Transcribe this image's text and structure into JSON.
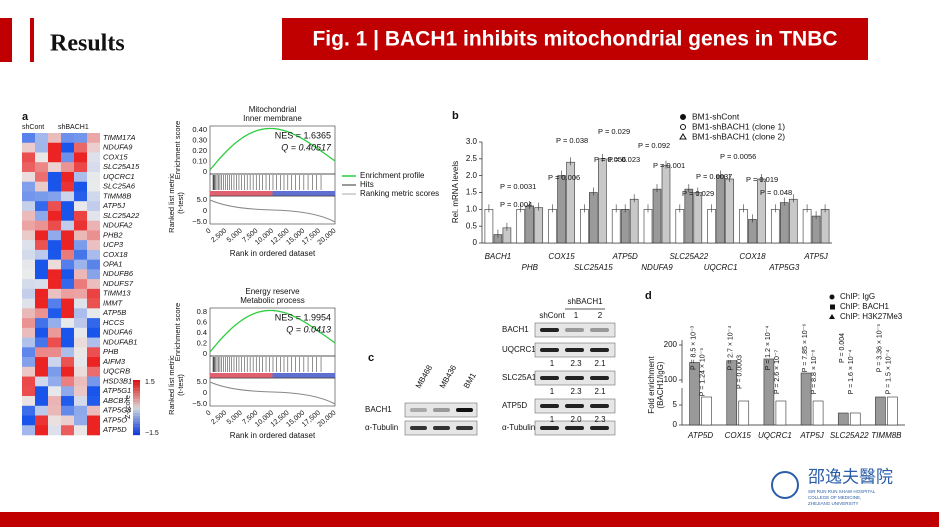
{
  "header": {
    "title": "Results",
    "banner": "Fig. 1 | BACH1 inhibits mitochondrial genes in TNBC"
  },
  "panel_a": {
    "label": "a",
    "groups": [
      "shCont",
      "shBACH1"
    ],
    "genes": [
      "TIMM17A",
      "NDUFA9",
      "COX15",
      "SLC25A15",
      "UQCRC1",
      "SLC25A6",
      "TIMM8B",
      "ATP5J",
      "SLC25A22",
      "NDUFA2",
      "PHB2",
      "UCP3",
      "COX18",
      "OPA1",
      "NDUFB6",
      "NDUFS7",
      "TIMM13",
      "IMMT",
      "ATP5B",
      "HCCS",
      "NDUFA6",
      "NDUFAB1",
      "PHB",
      "AIFM3",
      "UQCRB",
      "HSD3B1",
      "ATP5G1",
      "ABCB7",
      "ATP5G3",
      "ATP5O",
      "ATP5D"
    ],
    "scale": {
      "max": "1.5",
      "min": "−1.5",
      "label": "Z-score"
    },
    "legend": [
      "Enrichment profile",
      "Hits",
      "Ranking metric scores"
    ],
    "gsea": [
      {
        "title": [
          "Mitochondrial",
          "Inner membrane"
        ],
        "es_label": "Enrichment score",
        "es_ticks": [
          "0.40",
          "0.30",
          "0.20",
          "0.10",
          "0"
        ],
        "nes": "NES = 1.6365",
        "q": "Q = 0.40517",
        "metric_label": [
          "Ranked list metric",
          "(t-test)"
        ],
        "metric_ticks": [
          "5.0",
          "0",
          "−5.0"
        ],
        "x_ticks": [
          "0",
          "2,500",
          "5,000",
          "7,500",
          "10,000",
          "12,500",
          "15,000",
          "17,500",
          "20,000"
        ],
        "x_label": "Rank in ordered dataset"
      },
      {
        "title": [
          "Energy reserve",
          "Metabolic process"
        ],
        "es_label": "Enrichment score",
        "es_ticks": [
          "0.8",
          "0.6",
          "0.4",
          "0.2",
          "0"
        ],
        "nes": "NES = 1.9954",
        "q": "Q = 0.0413",
        "metric_label": [
          "Ranked list metric",
          "(t-test)"
        ],
        "metric_ticks": [
          "5.0",
          "0",
          "−5.0"
        ],
        "x_ticks": [
          "0",
          "2,500",
          "5,000",
          "7,500",
          "10,000",
          "12,500",
          "15,000",
          "17,500",
          "20,000"
        ],
        "x_label": "Rank in ordered dataset"
      }
    ]
  },
  "panel_b": {
    "label": "b",
    "type": "bar",
    "y_label": "Rel. mRNA levels",
    "categories": [
      "BACH1",
      "PHB",
      "COX15",
      "SLC25A15",
      "ATP5D",
      "NDUFA9",
      "SLC25A22",
      "UQCRC1",
      "COX18",
      "ATP5G3",
      "ATP5J"
    ],
    "series": [
      {
        "name": "BM1-shCont",
        "color": "#ffffff",
        "values": [
          1,
          1,
          1,
          1,
          1,
          1,
          1,
          1,
          1,
          1,
          1
        ]
      },
      {
        "name": "BM1-shBACH1 (clone 1)",
        "color": "#9a9a9a",
        "values": [
          0.25,
          1.1,
          2.0,
          1.5,
          1.0,
          1.6,
          1.6,
          2.0,
          0.7,
          1.2,
          0.8
        ]
      },
      {
        "name": "BM1-shBACH1 (clone 2)",
        "color": "#c8c8c8",
        "values": [
          0.45,
          1.05,
          2.4,
          2.5,
          1.3,
          2.3,
          1.5,
          1.9,
          1.9,
          1.3,
          1.0
        ]
      }
    ],
    "ylim": [
      0,
      3
    ],
    "yticks": [
      0,
      {
        "value": 0.5,
        "label": "0.5"
      },
      {
        "value": 1,
        "label": "1.0"
      },
      {
        "value": 1.5,
        "label": "1.5"
      },
      {
        "value": 2,
        "label": "2.0"
      },
      {
        "value": 2.5,
        "label": "2.5"
      },
      {
        "value": 3,
        "label": "3.0"
      }
    ],
    "annotations": [
      "P = 0.0031",
      "P = 0.004",
      "P = 0.006",
      "P = 0.038",
      "P = 0.056",
      "P = 0.029",
      "P = 0.023",
      "P = 0.092",
      "P = 0.001",
      "P = 0.0037",
      "P = 0.029",
      "P = 0.0056",
      "P = 0.019",
      "P = 0.048"
    ]
  },
  "panel_c": {
    "label": "c",
    "lines": [
      "MB468",
      "MB436",
      "BM1"
    ],
    "left_rows": [
      "BACH1",
      "α-Tubulin"
    ],
    "group": "shBACH1",
    "lanes": [
      "shCont",
      "1",
      "2"
    ],
    "right_rows": [
      "BACH1",
      "UQCRC1",
      "SLC25A15",
      "ATP5D",
      "α-Tubulin"
    ],
    "quant": [
      [
        "1",
        "2.3",
        "2.1"
      ],
      [
        "1",
        "2.3",
        "2.1"
      ],
      [
        "1",
        "2.0",
        "2.3"
      ]
    ]
  },
  "panel_d": {
    "label": "d",
    "type": "bar",
    "y_label": [
      "Fold enrichment",
      "(BACH1/IgG)"
    ],
    "legend": [
      "ChIP: IgG",
      "ChIP: BACH1",
      "ChIP: H3K27Me3"
    ],
    "categories": [
      "ATP5D",
      "COX15",
      "UQCRC1",
      "ATP5J",
      "SLC25A22",
      "TIMM8B"
    ],
    "series": [
      {
        "name": "ChIP: BACH1",
        "color": "#999999",
        "values": [
          150,
          155,
          160,
          120,
          3,
          7
        ]
      },
      {
        "name": "ChIP: H3K27Me3",
        "color": "#ffffff",
        "values": [
          7,
          6,
          6,
          6,
          3,
          7
        ]
      }
    ],
    "yticks": [
      0,
      5,
      100,
      200
    ],
    "annotations": [
      [
        "P = 8.5 × 10⁻³",
        "P = 1.24 × 10⁻⁵"
      ],
      [
        "P = 2.7 × 10⁻⁴",
        "P = 0.0003"
      ],
      [
        "P = 1.2 × 10⁻⁴",
        "P = 2.6 × 10⁻⁷"
      ],
      [
        "P = 7.85 × 10⁻⁶",
        "P = 8.8 × 10⁻⁸"
      ],
      [
        "P = 0.004",
        "P = 1.6 × 10⁻⁴"
      ],
      [
        "P = 3.36 × 10⁻⁵",
        "P = 1.5 × 10⁻⁴"
      ]
    ]
  },
  "logo": {
    "name": "邵逸夫醫院",
    "lines": [
      "SIR RUN RUN SHAW HOSPITAL",
      "COLLEGE OF MEDICINE,",
      "ZHEJIANG UNIVERSITY"
    ]
  }
}
